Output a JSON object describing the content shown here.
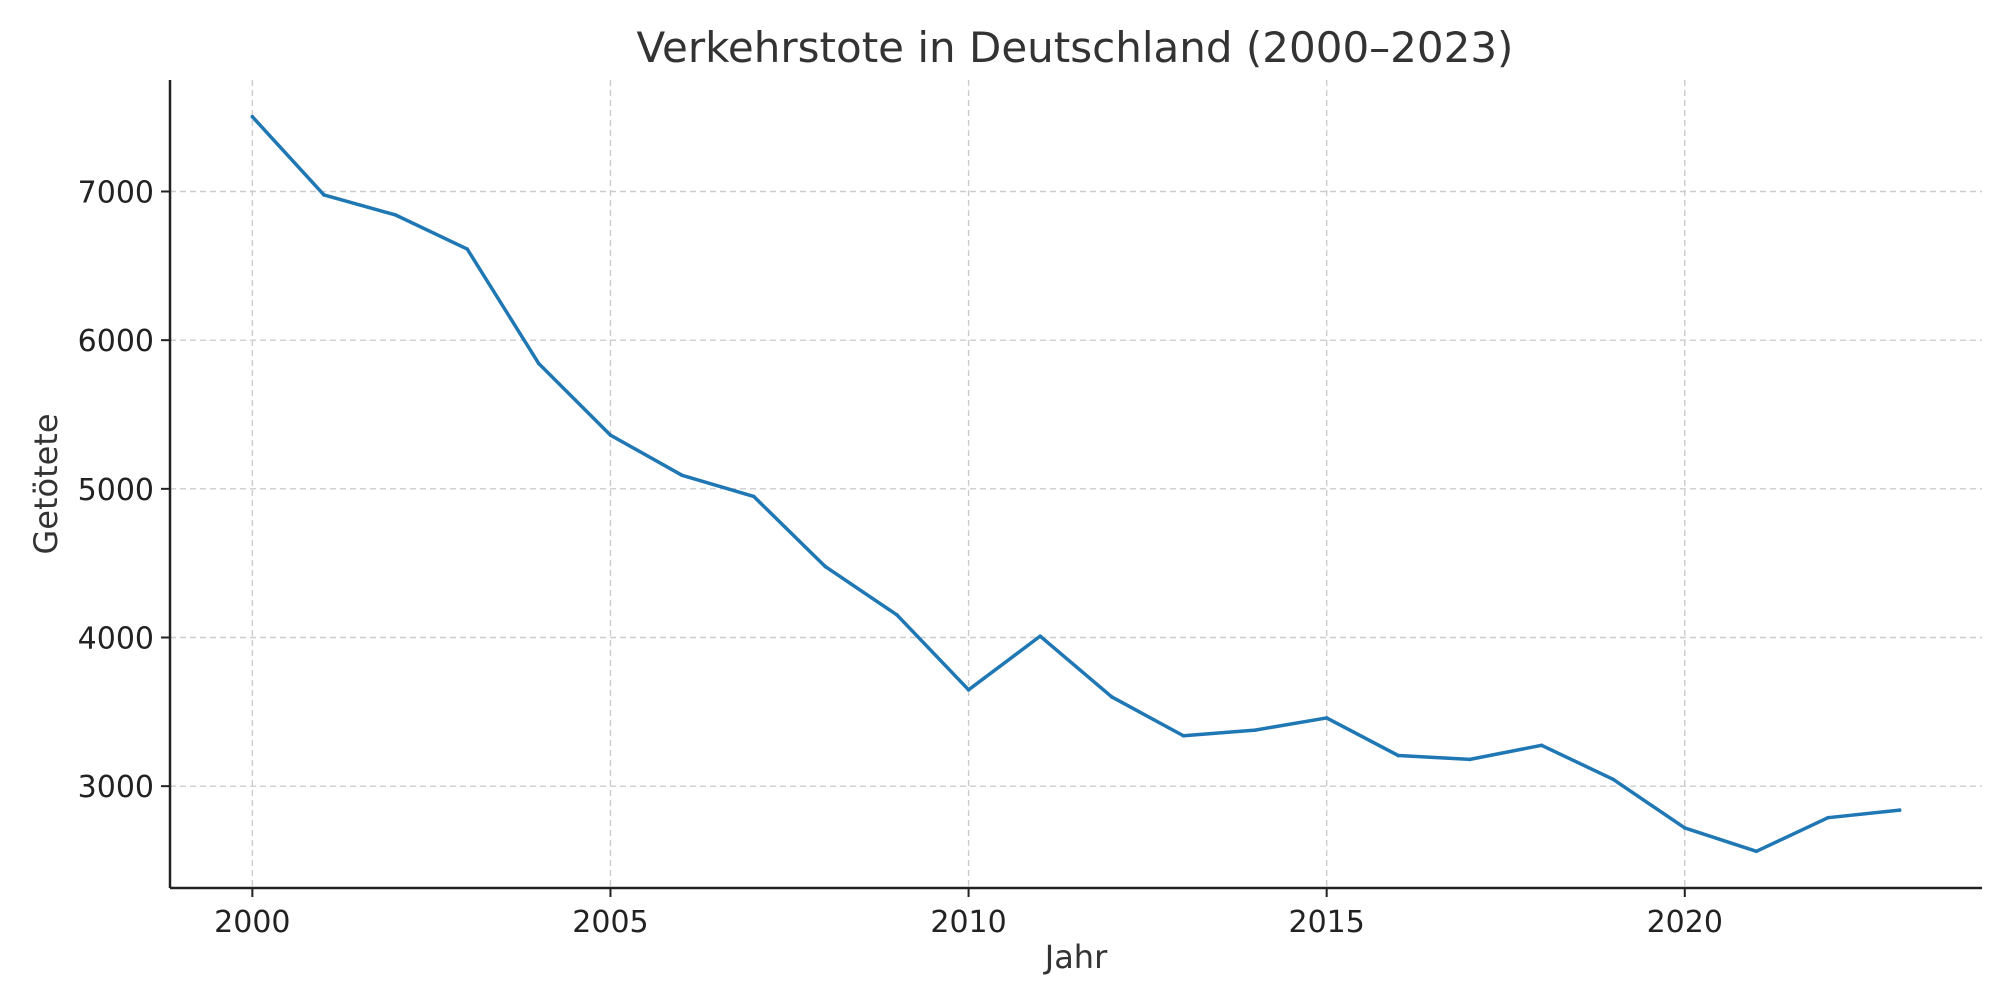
{
  "chart_data": {
    "type": "line",
    "title": "Verkehrstote in Deutschland (2000–2023)",
    "xlabel": "Jahr",
    "ylabel": "Getötete",
    "x": [
      2000,
      2001,
      2002,
      2003,
      2004,
      2005,
      2006,
      2007,
      2008,
      2009,
      2010,
      2011,
      2012,
      2013,
      2014,
      2015,
      2016,
      2017,
      2018,
      2019,
      2020,
      2021,
      2022,
      2023
    ],
    "series": [
      {
        "values": [
          7503,
          6977,
          6842,
          6613,
          5842,
          5361,
          5091,
          4949,
          4477,
          4152,
          3648,
          4009,
          3600,
          3339,
          3377,
          3459,
          3206,
          3180,
          3275,
          3046,
          2719,
          2562,
          2788,
          2839
        ],
        "color": "#1f77b4"
      }
    ],
    "xticks": [
      2000,
      2005,
      2010,
      2015,
      2020
    ],
    "yticks": [
      3000,
      4000,
      5000,
      6000,
      7000
    ],
    "xlim": [
      1998.85,
      2024.15
    ],
    "ylim": [
      2315,
      7750
    ],
    "grid": true,
    "legend": "none"
  }
}
